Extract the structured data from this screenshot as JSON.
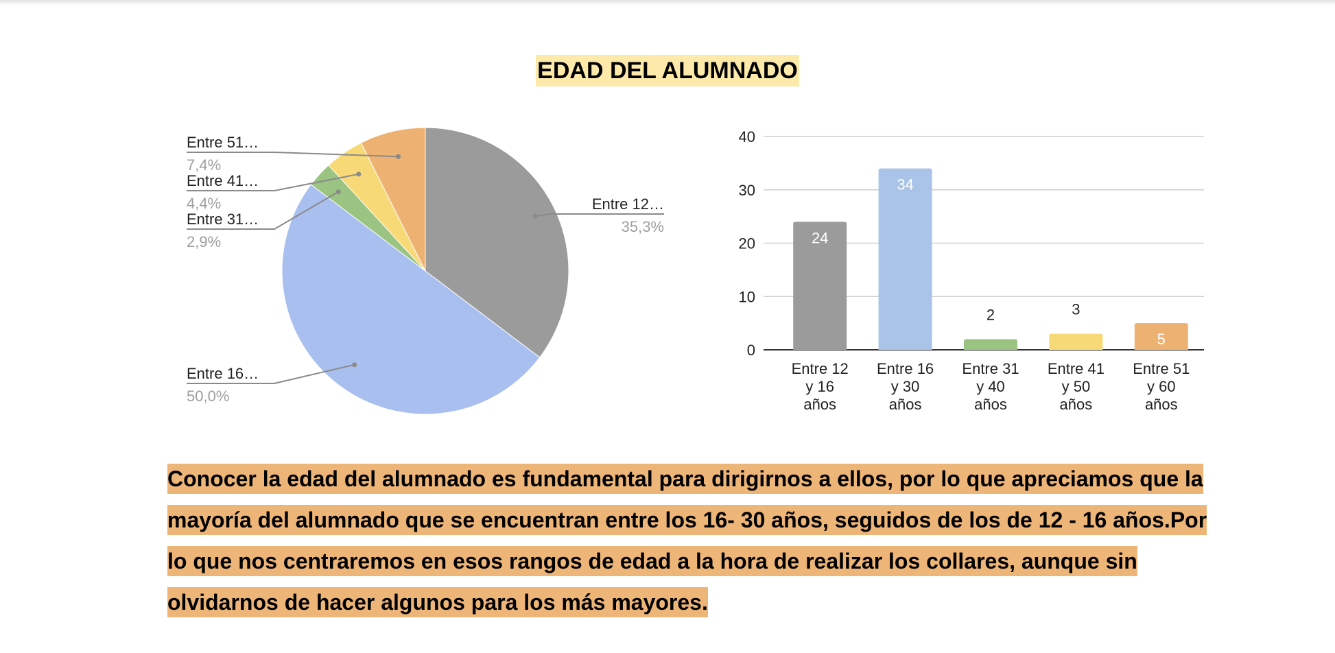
{
  "title": "EDAD DEL ALUMNADO",
  "paragraph": "Conocer la edad del alumnado es fundamental para dirigirnos a ellos, por lo que apreciamos que la mayoría del alumnado que se encuentran entre los 16- 30 años, seguidos de los de 12 - 16 años.Por lo que nos centraremos en esos rangos de edad a la hora de realizar los collares, aunque sin olvidarnos de hacer algunos para los más mayores.",
  "chart_data": [
    {
      "type": "pie",
      "title": "",
      "slices": [
        {
          "label": "Entre 12…",
          "percent_label": "35,3%",
          "value": 35.3,
          "color": "#9b9b9b"
        },
        {
          "label": "Entre 16…",
          "percent_label": "50,0%",
          "value": 50.0,
          "color": "#a9bfef"
        },
        {
          "label": "Entre 31…",
          "percent_label": "2,9%",
          "value": 2.9,
          "color": "#9bc381"
        },
        {
          "label": "Entre 41…",
          "percent_label": "4,4%",
          "value": 4.4,
          "color": "#f8d977"
        },
        {
          "label": "Entre 51…",
          "percent_label": "7,4%",
          "value": 7.4,
          "color": "#edb272"
        }
      ],
      "legend": "none"
    },
    {
      "type": "bar",
      "title": "",
      "xlabel": "",
      "ylabel": "",
      "categories": [
        [
          "Entre 12",
          "y 16",
          "años"
        ],
        [
          "Entre 16",
          "y 30",
          "años"
        ],
        [
          "Entre 31",
          "y 40",
          "años"
        ],
        [
          "Entre 41",
          "y 50",
          "años"
        ],
        [
          "Entre 51",
          "y 60",
          "años"
        ]
      ],
      "values": [
        24,
        34,
        2,
        3,
        5
      ],
      "colors": [
        "#9b9b9b",
        "#a9c4e8",
        "#9bc381",
        "#f8d977",
        "#edb272"
      ],
      "data_labels": [
        "24",
        "34",
        "2",
        "3",
        "5"
      ],
      "label_inside": [
        true,
        true,
        false,
        false,
        true
      ],
      "ylim": [
        0,
        40
      ],
      "yticks": [
        "0",
        "10",
        "20",
        "30",
        "40"
      ],
      "grid": true,
      "legend": "none"
    }
  ]
}
